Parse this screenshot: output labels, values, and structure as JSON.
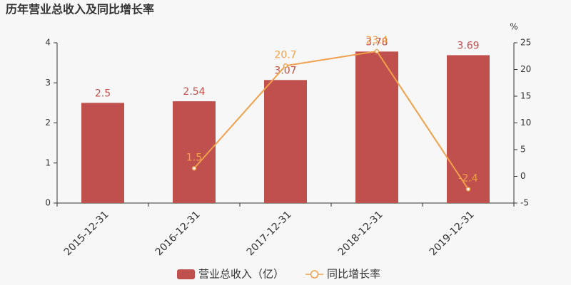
{
  "chart_data": {
    "type": "bar-line",
    "title": "历年营业总收入及同比增长率",
    "categories": [
      "2015-12-31",
      "2016-12-31",
      "2017-12-31",
      "2018-12-31",
      "2019-12-31"
    ],
    "series": [
      {
        "name": "营业总收入（亿）",
        "type": "bar",
        "color": "#c0504d",
        "values": [
          2.5,
          2.54,
          3.07,
          3.78,
          3.69
        ]
      },
      {
        "name": "同比增长率",
        "type": "line",
        "axis": "y2",
        "color": "#f0a04b",
        "values": [
          null,
          1.5,
          20.7,
          23.4,
          -2.4
        ]
      }
    ],
    "ylim": [
      0,
      4
    ],
    "yticks": [
      0,
      1,
      2,
      3,
      4
    ],
    "y2lim": [
      -5,
      25
    ],
    "y2ticks": [
      -5,
      0,
      5,
      10,
      15,
      20,
      25
    ],
    "y2label": "%"
  }
}
